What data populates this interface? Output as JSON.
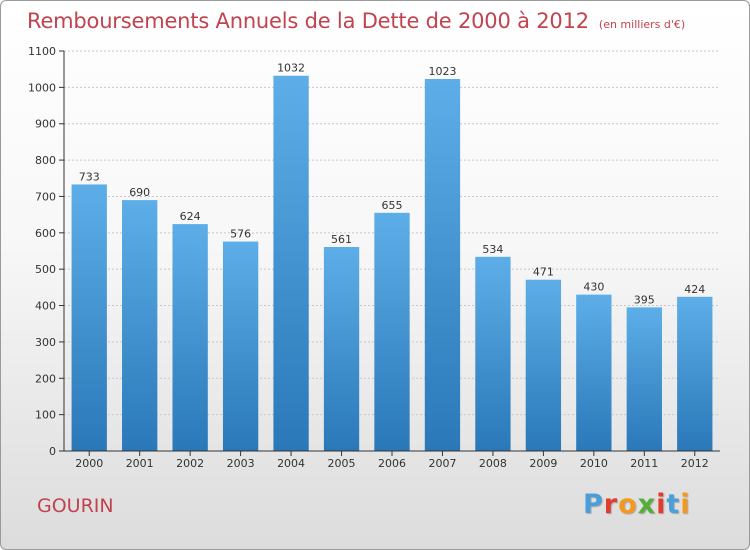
{
  "header": {
    "title": "Remboursements Annuels de la Dette de 2000 à 2012",
    "unit": "(en milliers d'€)"
  },
  "footer": {
    "commune": "GOURIN",
    "logo_text": "Proxiti",
    "logo_colors": [
      "#4a9fd8",
      "#e23c2e",
      "#f39a1e",
      "#57ad3a",
      "#e23c2e",
      "#4a9fd8",
      "#f39a1e"
    ]
  },
  "colors": {
    "title": "#c1434f",
    "bar_top": "#5daee8",
    "bar_bottom": "#2a78b8",
    "grid": "#c8c8c8",
    "axis": "#333333"
  },
  "chart_data": {
    "type": "bar",
    "categories": [
      "2000",
      "2001",
      "2002",
      "2003",
      "2004",
      "2005",
      "2006",
      "2007",
      "2008",
      "2009",
      "2010",
      "2011",
      "2012"
    ],
    "values": [
      733,
      690,
      624,
      576,
      1032,
      561,
      655,
      1023,
      534,
      471,
      430,
      395,
      424
    ],
    "yticks": [
      0,
      100,
      200,
      300,
      400,
      500,
      600,
      700,
      800,
      900,
      1000,
      1100
    ],
    "ylim": [
      0,
      1100
    ],
    "grid": true,
    "data_labels": true
  }
}
